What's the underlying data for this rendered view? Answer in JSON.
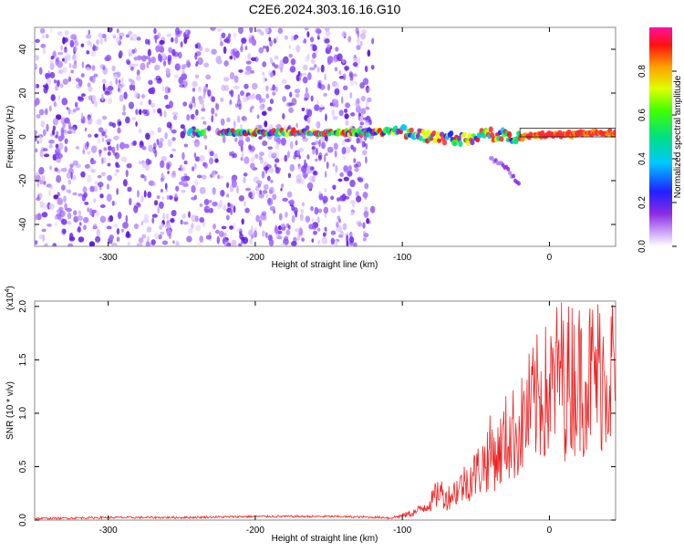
{
  "title": "C2E6.2024.303.16.16.G10",
  "colors": {
    "spectrogram_noise": "#9b55ff",
    "spectrogram_line": "#ff3030",
    "snr_line": "#ee2222",
    "axis": "#000000",
    "frame": "#888888"
  },
  "chart_data": [
    {
      "type": "heatmap",
      "xlabel": "Height of straight line (km)",
      "ylabel": "Frequency (Hz)",
      "xlim": [
        -350,
        45
      ],
      "ylim": [
        -50,
        50
      ],
      "xticks": [
        -300,
        -200,
        -100,
        0
      ],
      "yticks": [
        -40,
        -20,
        0,
        20,
        40
      ],
      "grid": false,
      "colorbar": {
        "label": "Normalized spectral amplitude",
        "range": [
          0,
          1
        ],
        "ticks": [
          "0.0",
          "0.2",
          "0.4",
          "0.6",
          "0.8"
        ],
        "colormap": "rainbow"
      },
      "features": {
        "noise_region_x": [
          -350,
          -120
        ],
        "carrier_frequency_hz": [
          [
            -245,
            2
          ],
          [
            -120,
            2
          ],
          [
            -100,
            3
          ],
          [
            -80,
            0
          ],
          [
            -60,
            -1
          ],
          [
            -40,
            1
          ],
          [
            -20,
            0
          ],
          [
            0,
            1
          ],
          [
            45,
            2
          ]
        ],
        "doppler_branch_hz": [
          [
            -40,
            -10
          ],
          [
            -30,
            -14
          ],
          [
            -20,
            -22
          ]
        ]
      }
    },
    {
      "type": "line",
      "xlabel": "Height of straight line (km)",
      "ylabel": "SNR (10 * v/v)",
      "y_multiplier": "(x10^4)",
      "xlim": [
        -350,
        45
      ],
      "ylim": [
        0,
        2.05
      ],
      "xticks": [
        -300,
        -200,
        -100,
        0
      ],
      "yticks": [
        "0.0",
        "0.5",
        "1.0",
        "1.5",
        "2.0"
      ],
      "series": [
        {
          "x": [
            -350,
            -300,
            -250,
            -200,
            -150,
            -110,
            -100,
            -90,
            -80,
            -75,
            -70,
            -60,
            -50,
            -45,
            -40,
            -35,
            -30,
            -25,
            -20,
            -15,
            -10,
            -5,
            0,
            5,
            8,
            10,
            15,
            20,
            30,
            40,
            45
          ],
          "y": [
            0.01,
            0.02,
            0.02,
            0.03,
            0.03,
            0.02,
            0.05,
            0.1,
            0.22,
            0.35,
            0.25,
            0.4,
            0.55,
            0.65,
            0.8,
            0.75,
            0.95,
            1.0,
            1.05,
            1.25,
            1.35,
            1.5,
            1.45,
            1.65,
            1.9,
            1.55,
            1.7,
            1.65,
            1.7,
            1.75,
            1.75
          ]
        }
      ]
    }
  ],
  "labels": {
    "colorbar_tick_0": "0.0",
    "colorbar_tick_1": "0.2",
    "colorbar_tick_2": "0.4",
    "colorbar_tick_3": "0.6",
    "colorbar_tick_4": "0.8",
    "snr_multiplier_base": "(x10",
    "snr_multiplier_exp": "4",
    "snr_multiplier_close": ")"
  }
}
